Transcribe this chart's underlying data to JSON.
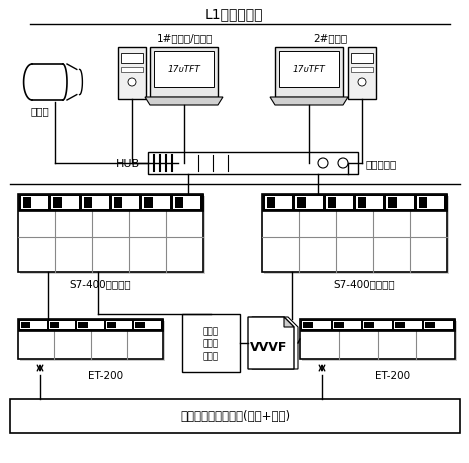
{
  "title": "L1基础自动化",
  "bg_color": "#ffffff",
  "label_1": "1#工程师/操作员",
  "label_2": "2#操作员",
  "label_hub": "HUB",
  "label_ethernet": "工业以太网",
  "label_printer": "打印机",
  "label_s7_left": "S7-400电气控制",
  "label_s7_right": "S7-400仪表控制",
  "label_et200_left": "ET-200",
  "label_et200_right": "ET-200",
  "label_encoder": "炉底传\n动绝对\n编码器",
  "label_vvvf": "VVVF",
  "label_bottom": "环形加热炉现场检测(仪表+电气)",
  "label_monitor": "17ᴜTFT",
  "figsize": [
    4.69,
    4.64
  ],
  "dpi": 100
}
